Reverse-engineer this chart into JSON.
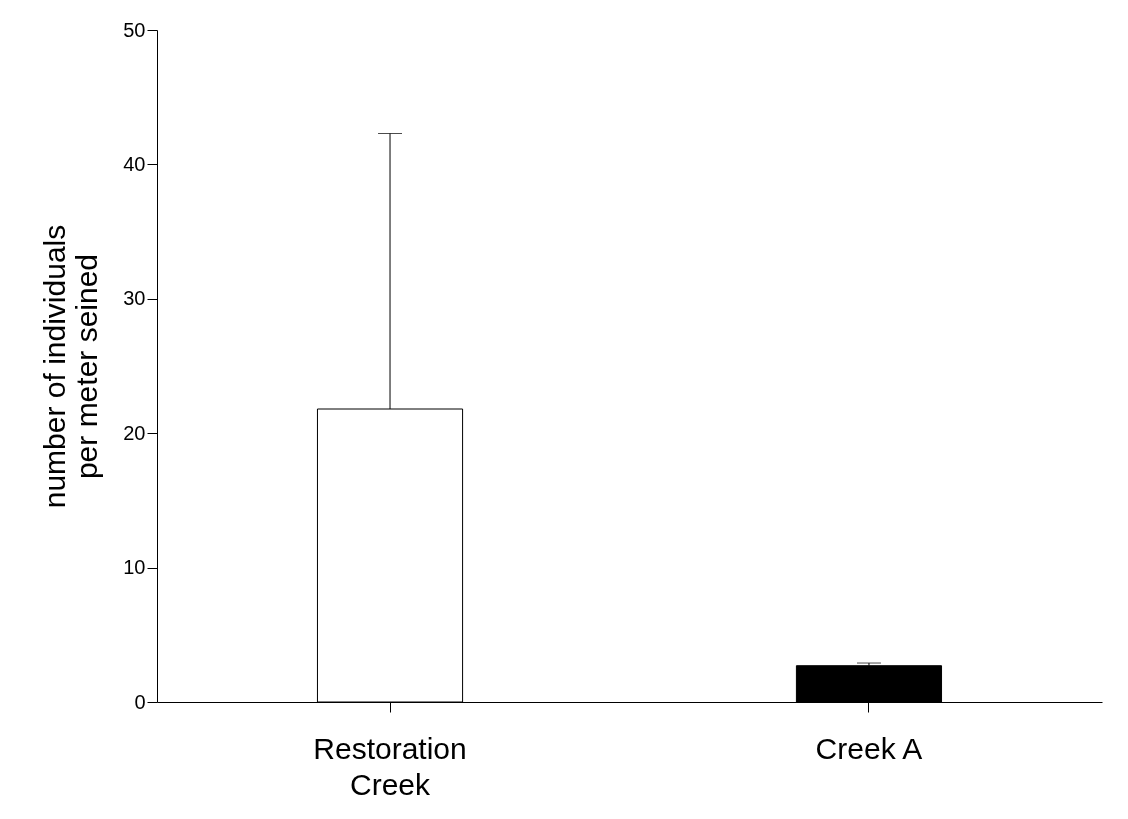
{
  "chart_data": {
    "type": "bar",
    "ylabel": "number of individuals\nper meter seined",
    "categories": [
      "Restoration\nCreek",
      "Creek A"
    ],
    "values": [
      21.8,
      2.7
    ],
    "colors": [
      "#ffffff",
      "#000000"
    ],
    "errors": [
      [
        21.8,
        42.3
      ],
      [
        2.7,
        2.9
      ]
    ],
    "ylim": [
      0,
      50
    ],
    "yticks": [
      0,
      10,
      20,
      30,
      40,
      50
    ],
    "grid": false
  }
}
